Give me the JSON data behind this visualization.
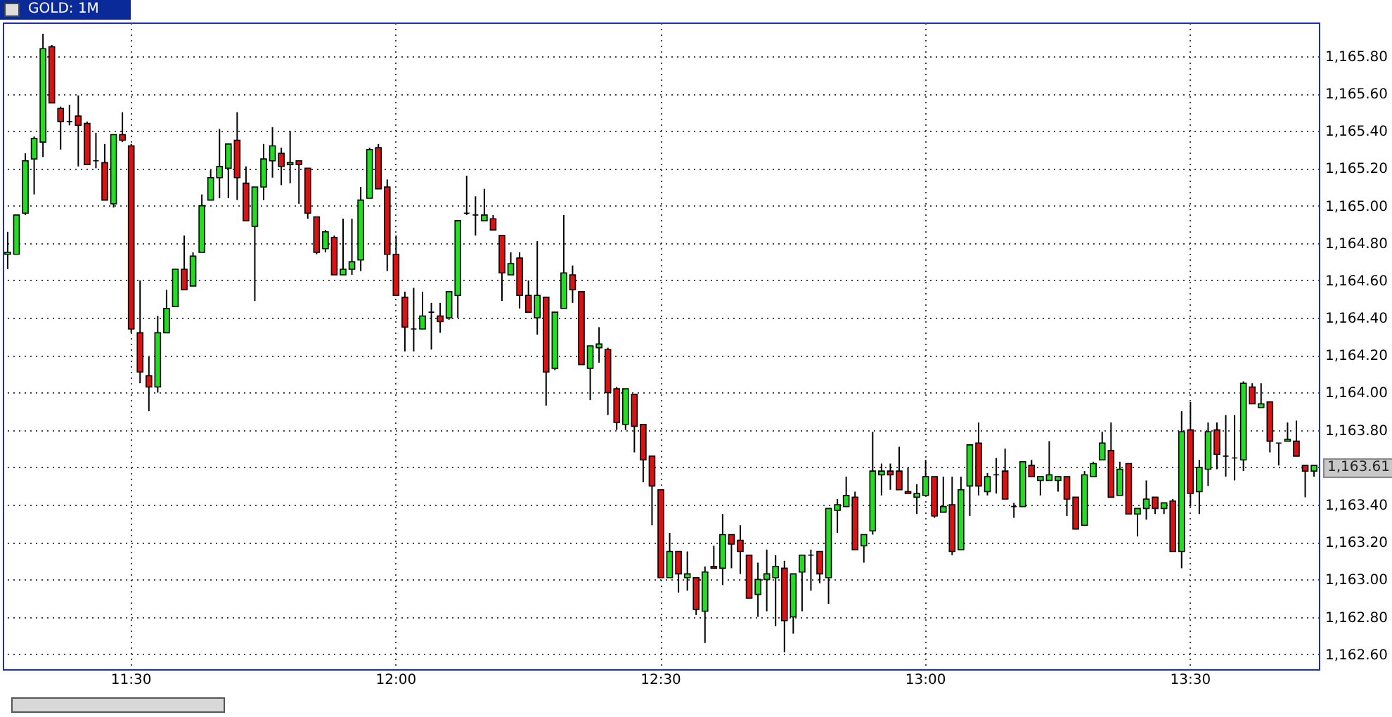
{
  "chart_data": {
    "type": "candlestick",
    "title": "GOLD: 1M",
    "categories": [
      null,
      null,
      null,
      null,
      null,
      null,
      null,
      null,
      null,
      null,
      null,
      null,
      null,
      null,
      "11:30",
      null,
      null,
      null,
      null,
      null,
      null,
      null,
      null,
      null,
      null,
      null,
      null,
      null,
      null,
      null,
      null,
      null,
      null,
      null,
      null,
      null,
      null,
      null,
      null,
      null,
      null,
      null,
      null,
      null,
      "12:00",
      null,
      null,
      null,
      null,
      null,
      null,
      null,
      null,
      null,
      null,
      null,
      null,
      null,
      null,
      null,
      null,
      null,
      null,
      null,
      null,
      null,
      null,
      null,
      null,
      null,
      null,
      null,
      null,
      null,
      "12:30",
      null,
      null,
      null,
      null,
      null,
      null,
      null,
      null,
      null,
      null,
      null,
      null,
      null,
      null,
      null,
      null,
      null,
      null,
      null,
      null,
      null,
      null,
      null,
      null,
      null,
      null,
      null,
      null,
      null,
      "13:00",
      null,
      null,
      null,
      null,
      null,
      null,
      null,
      null,
      null,
      null,
      null,
      null,
      null,
      null,
      null,
      null,
      null,
      null,
      null,
      null,
      null,
      null,
      null,
      null,
      null,
      null,
      null,
      null,
      null,
      "13:30",
      null,
      null,
      null,
      null,
      null,
      null,
      null,
      null,
      null,
      null,
      null,
      null,
      null,
      null
    ],
    "ohlc": [
      [
        1164.74,
        1164.86,
        1164.66,
        1164.75
      ],
      [
        1164.74,
        1164.95,
        1164.74,
        1164.95
      ],
      [
        1164.96,
        1165.28,
        1164.95,
        1165.24
      ],
      [
        1165.25,
        1165.37,
        1165.06,
        1165.36
      ],
      [
        1165.34,
        1165.92,
        1165.26,
        1165.84
      ],
      [
        1165.85,
        1165.86,
        1165.55,
        1165.55
      ],
      [
        1165.52,
        1165.53,
        1165.3,
        1165.45
      ],
      [
        1165.45,
        1165.54,
        1165.43,
        1165.45
      ],
      [
        1165.48,
        1165.59,
        1165.21,
        1165.43
      ],
      [
        1165.44,
        1165.45,
        1165.22,
        1165.22
      ],
      [
        1165.24,
        1165.39,
        1165.2,
        1165.24
      ],
      [
        1165.23,
        1165.33,
        1165.03,
        1165.03
      ],
      [
        1165.01,
        1165.38,
        1164.99,
        1165.38
      ],
      [
        1165.38,
        1165.5,
        1165.34,
        1165.35
      ],
      [
        1165.32,
        1165.33,
        1164.32,
        1164.34
      ],
      [
        1164.32,
        1164.6,
        1164.05,
        1164.11
      ],
      [
        1164.09,
        1164.19,
        1163.9,
        1164.03
      ],
      [
        1164.03,
        1164.41,
        1164.0,
        1164.32
      ],
      [
        1164.32,
        1164.55,
        1164.32,
        1164.45
      ],
      [
        1164.46,
        1164.66,
        1164.46,
        1164.66
      ],
      [
        1164.66,
        1164.84,
        1164.55,
        1164.55
      ],
      [
        1164.57,
        1164.75,
        1164.57,
        1164.73
      ],
      [
        1164.75,
        1165.06,
        1164.75,
        1165.0
      ],
      [
        1165.03,
        1165.19,
        1165.03,
        1165.15
      ],
      [
        1165.15,
        1165.41,
        1165.04,
        1165.21
      ],
      [
        1165.2,
        1165.33,
        1165.04,
        1165.33
      ],
      [
        1165.35,
        1165.5,
        1165.03,
        1165.15
      ],
      [
        1165.12,
        1165.21,
        1164.92,
        1164.92
      ],
      [
        1164.89,
        1165.1,
        1164.49,
        1165.1
      ],
      [
        1165.1,
        1165.33,
        1165.03,
        1165.25
      ],
      [
        1165.24,
        1165.42,
        1165.15,
        1165.32
      ],
      [
        1165.28,
        1165.31,
        1165.11,
        1165.21
      ],
      [
        1165.22,
        1165.4,
        1165.12,
        1165.23
      ],
      [
        1165.24,
        1165.24,
        1165.01,
        1165.22
      ],
      [
        1165.2,
        1165.2,
        1164.93,
        1164.96
      ],
      [
        1164.94,
        1164.94,
        1164.74,
        1164.75
      ],
      [
        1164.77,
        1164.87,
        1164.75,
        1164.86
      ],
      [
        1164.83,
        1164.84,
        1164.63,
        1164.63
      ],
      [
        1164.63,
        1164.93,
        1164.63,
        1164.66
      ],
      [
        1164.66,
        1164.93,
        1164.63,
        1164.7
      ],
      [
        1164.71,
        1165.1,
        1164.65,
        1165.03
      ],
      [
        1165.04,
        1165.31,
        1165.04,
        1165.3
      ],
      [
        1165.31,
        1165.33,
        1165.09,
        1165.09
      ],
      [
        1165.1,
        1165.14,
        1164.65,
        1164.74
      ],
      [
        1164.74,
        1164.84,
        1164.52,
        1164.52
      ],
      [
        1164.51,
        1164.54,
        1164.22,
        1164.35
      ],
      [
        1164.34,
        1164.56,
        1164.22,
        1164.34
      ],
      [
        1164.34,
        1164.54,
        1164.34,
        1164.41
      ],
      [
        1164.43,
        1164.48,
        1164.23,
        1164.43
      ],
      [
        1164.41,
        1164.48,
        1164.32,
        1164.38
      ],
      [
        1164.4,
        1164.54,
        1164.39,
        1164.54
      ],
      [
        1164.52,
        1164.92,
        1164.4,
        1164.92
      ],
      [
        1164.96,
        1165.16,
        1164.95,
        1164.96
      ],
      [
        1164.95,
        1165.05,
        1164.84,
        1164.95
      ],
      [
        1164.92,
        1165.09,
        1164.92,
        1164.95
      ],
      [
        1164.93,
        1164.95,
        1164.87,
        1164.87
      ],
      [
        1164.84,
        1164.84,
        1164.49,
        1164.64
      ],
      [
        1164.63,
        1164.75,
        1164.63,
        1164.69
      ],
      [
        1164.72,
        1164.75,
        1164.45,
        1164.52
      ],
      [
        1164.52,
        1164.6,
        1164.43,
        1164.43
      ],
      [
        1164.4,
        1164.81,
        1164.31,
        1164.52
      ],
      [
        1164.51,
        1164.51,
        1163.93,
        1164.11
      ],
      [
        1164.13,
        1164.43,
        1164.12,
        1164.43
      ],
      [
        1164.45,
        1164.95,
        1164.45,
        1164.64
      ],
      [
        1164.63,
        1164.68,
        1164.48,
        1164.55
      ],
      [
        1164.54,
        1164.54,
        1164.15,
        1164.15
      ],
      [
        1164.13,
        1164.25,
        1163.96,
        1164.25
      ],
      [
        1164.24,
        1164.35,
        1164.16,
        1164.26
      ],
      [
        1164.23,
        1164.24,
        1163.88,
        1164.0
      ],
      [
        1164.02,
        1164.03,
        1163.8,
        1163.84
      ],
      [
        1163.83,
        1164.02,
        1163.8,
        1164.02
      ],
      [
        1163.99,
        1163.99,
        1163.68,
        1163.82
      ],
      [
        1163.83,
        1163.83,
        1163.52,
        1163.64
      ],
      [
        1163.66,
        1163.66,
        1163.29,
        1163.5
      ],
      [
        1163.48,
        1163.48,
        1163.01,
        1163.01
      ],
      [
        1163.01,
        1163.25,
        1163.01,
        1163.15
      ],
      [
        1163.15,
        1163.15,
        1162.93,
        1163.03
      ],
      [
        1163.01,
        1163.15,
        1162.94,
        1163.03
      ],
      [
        1163.01,
        1163.01,
        1162.81,
        1162.84
      ],
      [
        1162.83,
        1163.07,
        1162.66,
        1163.04
      ],
      [
        1163.07,
        1163.18,
        1163.06,
        1163.06
      ],
      [
        1163.06,
        1163.35,
        1162.97,
        1163.24
      ],
      [
        1163.24,
        1163.24,
        1163.06,
        1163.19
      ],
      [
        1163.21,
        1163.29,
        1163.03,
        1163.15
      ],
      [
        1163.13,
        1163.13,
        1162.9,
        1162.9
      ],
      [
        1162.92,
        1163.09,
        1162.8,
        1163.0
      ],
      [
        1163.0,
        1163.16,
        1162.83,
        1163.03
      ],
      [
        1163.01,
        1163.13,
        1162.75,
        1163.07
      ],
      [
        1163.06,
        1163.1,
        1162.61,
        1162.78
      ],
      [
        1162.8,
        1163.03,
        1162.71,
        1163.03
      ],
      [
        1163.04,
        1163.13,
        1162.83,
        1163.13
      ],
      [
        1163.13,
        1163.16,
        1162.94,
        1163.13
      ],
      [
        1163.15,
        1163.15,
        1162.98,
        1163.03
      ],
      [
        1163.01,
        1163.38,
        1162.87,
        1163.38
      ],
      [
        1163.37,
        1163.43,
        1163.25,
        1163.4
      ],
      [
        1163.39,
        1163.55,
        1163.39,
        1163.45
      ],
      [
        1163.44,
        1163.47,
        1163.16,
        1163.16
      ],
      [
        1163.18,
        1163.24,
        1163.09,
        1163.24
      ],
      [
        1163.26,
        1163.79,
        1163.24,
        1163.58
      ],
      [
        1163.56,
        1163.62,
        1163.45,
        1163.58
      ],
      [
        1163.58,
        1163.62,
        1163.48,
        1163.56
      ],
      [
        1163.58,
        1163.71,
        1163.48,
        1163.48
      ],
      [
        1163.47,
        1163.6,
        1163.46,
        1163.46
      ],
      [
        1163.44,
        1163.51,
        1163.35,
        1163.46
      ],
      [
        1163.45,
        1163.64,
        1163.45,
        1163.55
      ],
      [
        1163.55,
        1163.55,
        1163.33,
        1163.34
      ],
      [
        1163.36,
        1163.55,
        1163.36,
        1163.39
      ],
      [
        1163.4,
        1163.55,
        1163.13,
        1163.15
      ],
      [
        1163.16,
        1163.55,
        1163.16,
        1163.48
      ],
      [
        1163.5,
        1163.72,
        1163.34,
        1163.72
      ],
      [
        1163.73,
        1163.84,
        1163.45,
        1163.5
      ],
      [
        1163.47,
        1163.57,
        1163.45,
        1163.55
      ],
      [
        1163.56,
        1163.65,
        1163.46,
        1163.56
      ],
      [
        1163.58,
        1163.7,
        1163.43,
        1163.43
      ],
      [
        1163.39,
        1163.41,
        1163.33,
        1163.39
      ],
      [
        1163.39,
        1163.63,
        1163.39,
        1163.63
      ],
      [
        1163.61,
        1163.64,
        1163.55,
        1163.55
      ],
      [
        1163.53,
        1163.55,
        1163.45,
        1163.55
      ],
      [
        1163.53,
        1163.74,
        1163.53,
        1163.56
      ],
      [
        1163.53,
        1163.55,
        1163.47,
        1163.55
      ],
      [
        1163.55,
        1163.55,
        1163.34,
        1163.43
      ],
      [
        1163.44,
        1163.44,
        1163.27,
        1163.27
      ],
      [
        1163.29,
        1163.58,
        1163.29,
        1163.56
      ],
      [
        1163.55,
        1163.63,
        1163.55,
        1163.62
      ],
      [
        1163.64,
        1163.79,
        1163.64,
        1163.73
      ],
      [
        1163.69,
        1163.84,
        1163.44,
        1163.44
      ],
      [
        1163.45,
        1163.63,
        1163.45,
        1163.59
      ],
      [
        1163.62,
        1163.62,
        1163.35,
        1163.35
      ],
      [
        1163.35,
        1163.38,
        1163.23,
        1163.38
      ],
      [
        1163.38,
        1163.53,
        1163.32,
        1163.43
      ],
      [
        1163.44,
        1163.44,
        1163.35,
        1163.38
      ],
      [
        1163.38,
        1163.41,
        1163.35,
        1163.41
      ],
      [
        1163.42,
        1163.43,
        1163.15,
        1163.15
      ],
      [
        1163.15,
        1163.9,
        1163.06,
        1163.79
      ],
      [
        1163.8,
        1163.95,
        1163.39,
        1163.46
      ],
      [
        1163.47,
        1163.64,
        1163.35,
        1163.6
      ],
      [
        1163.59,
        1163.84,
        1163.5,
        1163.79
      ],
      [
        1163.8,
        1163.84,
        1163.59,
        1163.67
      ],
      [
        1163.66,
        1163.88,
        1163.55,
        1163.66
      ],
      [
        1163.65,
        1163.88,
        1163.53,
        1163.65
      ],
      [
        1163.64,
        1164.06,
        1163.58,
        1164.05
      ],
      [
        1164.03,
        1164.05,
        1163.94,
        1163.94
      ],
      [
        1163.92,
        1164.05,
        1163.92,
        1163.94
      ],
      [
        1163.95,
        1163.95,
        1163.68,
        1163.74
      ],
      [
        1163.73,
        1163.73,
        1163.61,
        1163.73
      ],
      [
        1163.74,
        1163.84,
        1163.74,
        1163.75
      ],
      [
        1163.74,
        1163.85,
        1163.66,
        1163.66
      ],
      [
        1163.61,
        1163.61,
        1163.44,
        1163.58
      ],
      [
        1163.58,
        1163.61,
        1163.55,
        1163.61
      ]
    ],
    "ylim": [
      1162.52,
      1165.98
    ],
    "yticks": [
      {
        "value": 1162.6,
        "label": "1,162.60"
      },
      {
        "value": 1162.8,
        "label": "1,162.80"
      },
      {
        "value": 1163.0,
        "label": "1,163.00"
      },
      {
        "value": 1163.2,
        "label": "1,163.20"
      },
      {
        "value": 1163.4,
        "label": "1,163.40"
      },
      {
        "value": 1163.6,
        "label": null
      },
      {
        "value": 1163.8,
        "label": "1,163.80"
      },
      {
        "value": 1164.0,
        "label": "1,164.00"
      },
      {
        "value": 1164.2,
        "label": "1,164.20"
      },
      {
        "value": 1164.4,
        "label": "1,164.40"
      },
      {
        "value": 1164.6,
        "label": "1,164.60"
      },
      {
        "value": 1164.8,
        "label": "1,164.80"
      },
      {
        "value": 1165.0,
        "label": "1,165.00"
      },
      {
        "value": 1165.2,
        "label": "1,165.20"
      },
      {
        "value": 1165.4,
        "label": "1,165.40"
      },
      {
        "value": 1165.6,
        "label": "1,165.60"
      },
      {
        "value": 1165.8,
        "label": "1,165.80"
      }
    ],
    "annotations": [
      "1,163.61"
    ],
    "grid": true
  }
}
